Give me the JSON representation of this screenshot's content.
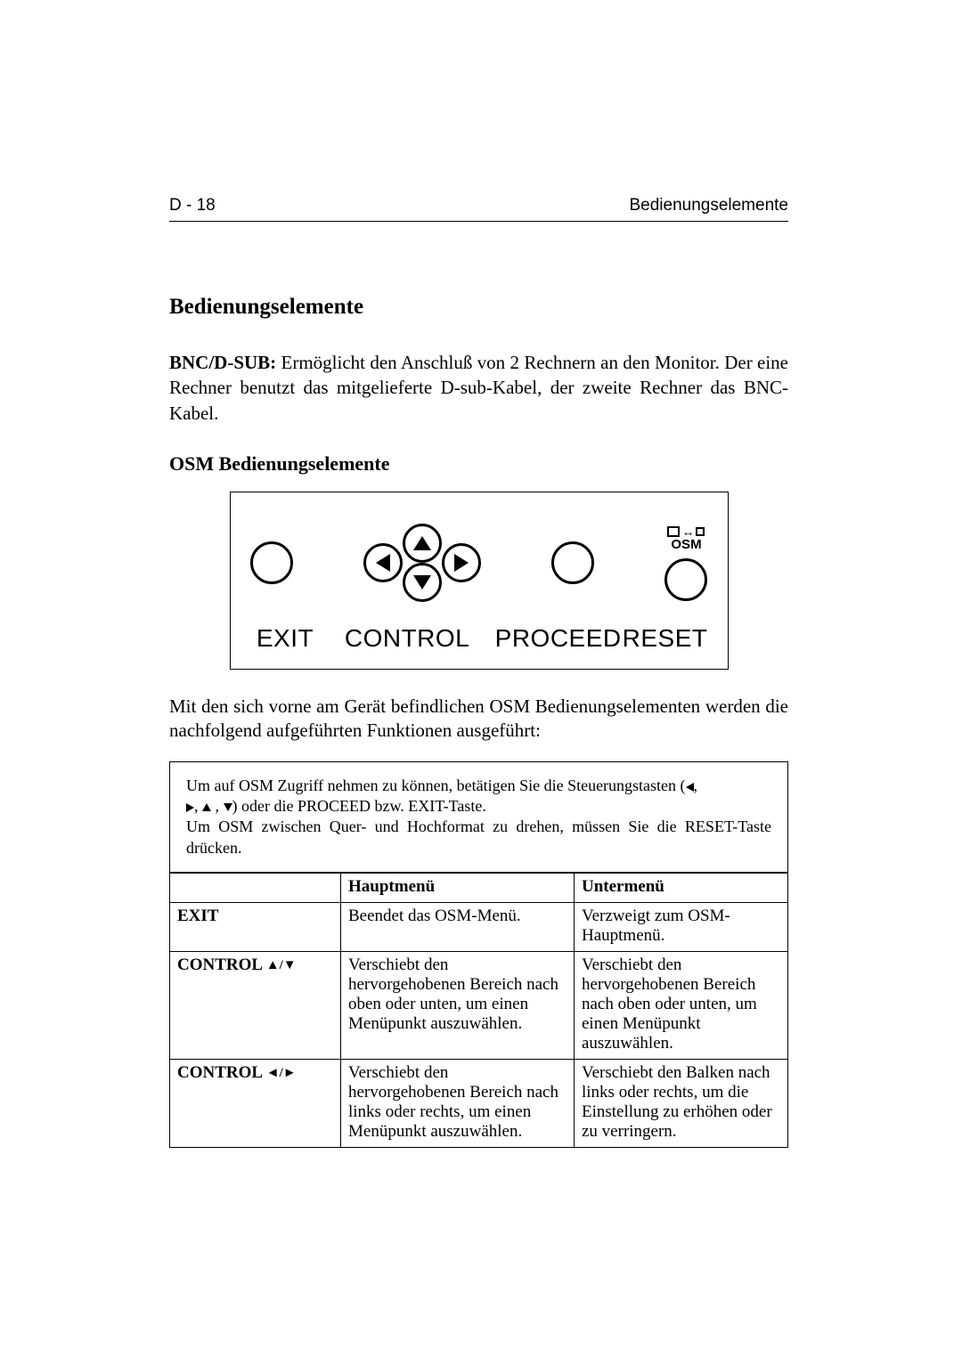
{
  "header": {
    "page_number": "D - 18",
    "running_title": "Bedienungselemente"
  },
  "h1": "Bedienungselemente",
  "intro": {
    "lead": "BNC/D-SUB:",
    "text": " Ermöglicht den Anschluß von 2 Rechnern an den Monitor. Der eine Rechner benutzt das mitgelieferte D-sub-Kabel, der zweite Rechner das BNC-Kabel."
  },
  "h2": "OSM Bedienungselemente",
  "diagram": {
    "osm_label": "OSM",
    "labels": {
      "exit": "EXIT",
      "control": "CONTROL",
      "proceed": "PROCEED",
      "reset": "RESET"
    }
  },
  "after_diagram": "Mit den sich vorne am Gerät befindlichen OSM Bedienungselementen werden die nachfolgend aufgeführten Funktionen ausgeführt:",
  "note": {
    "line1_a": "Um auf OSM Zugriff nehmen zu können, betätigen Sie die Steuerungstasten (",
    "line1_b": ",",
    "line2_a": ", ",
    "line2_b": " , ",
    "line2_c": ") oder die PROCEED bzw. EXIT-Taste.",
    "line3": "Um OSM zwischen Quer- und Hochformat zu drehen, müssen Sie die RESET-Taste drücken."
  },
  "table": {
    "head": {
      "c1": "",
      "c2": "Hauptmenü",
      "c3": "Untermenü"
    },
    "rows": [
      {
        "ctrl_html": "EXIT",
        "main": "Beendet das OSM-Menü.",
        "sub": "Verzweigt zum OSM-Hauptmenü."
      },
      {
        "ctrl_html": "CONTROL <span class='ctrl-arrows'>▲/▼</span>",
        "main": "Verschiebt den hervorgehobenen Bereich nach oben oder unten, um einen Menüpunkt auszuwählen.",
        "sub": "Verschiebt den hervorgehobenen Bereich nach oben oder unten, um einen Menüpunkt auszuwählen."
      },
      {
        "ctrl_html": "CONTROL <span class='ctrl-arrows'>◄/►</span>",
        "main": "Verschiebt den hervorgehobenen Bereich nach links oder rechts, um einen Menüpunkt auszuwählen.",
        "sub": "Verschiebt den Balken nach links oder rechts, um die Einstellung zu erhöhen oder zu verringern."
      }
    ]
  }
}
